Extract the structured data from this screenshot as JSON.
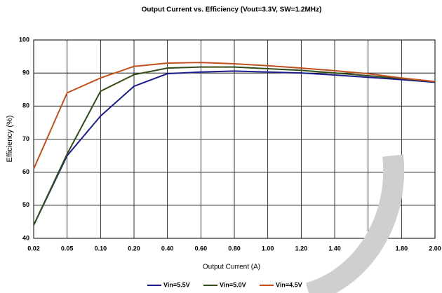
{
  "chart_data": {
    "type": "line",
    "title": "Output Current vs. Efficiency (Vout=3.3V, SW=1.2MHz)",
    "x_label": "Output Current (A)",
    "y_label": "Efficiency (%)",
    "categories": [
      "0.02",
      "0.05",
      "0.10",
      "0.20",
      "0.40",
      "0.60",
      "0.80",
      "1.00",
      "1.20",
      "1.40",
      "1.60",
      "1.80",
      "2.00"
    ],
    "series": [
      {
        "name": "Vin=5.5V",
        "color": "#1c1c8c",
        "values": [
          44,
          65,
          77,
          86,
          89.8,
          90.3,
          90.6,
          90.3,
          90,
          89.4,
          88.7,
          88,
          87.2
        ]
      },
      {
        "name": "Vin=5.0V",
        "color": "#334d1a",
        "values": [
          44,
          65.5,
          84.5,
          89.5,
          91.5,
          91.8,
          91.8,
          91.3,
          90.8,
          90,
          89.2,
          88.3,
          87.4
        ]
      },
      {
        "name": "Vin=4.5V",
        "color": "#c0501f",
        "values": [
          61,
          84,
          88.5,
          92,
          93,
          93.2,
          92.8,
          92.2,
          91.5,
          90.7,
          89.8,
          88.5,
          87.4
        ]
      }
    ],
    "ylim": [
      40,
      100
    ],
    "yticks": [
      40,
      50,
      60,
      70,
      80,
      90,
      100
    ],
    "grid": true,
    "legend": "bottom"
  }
}
